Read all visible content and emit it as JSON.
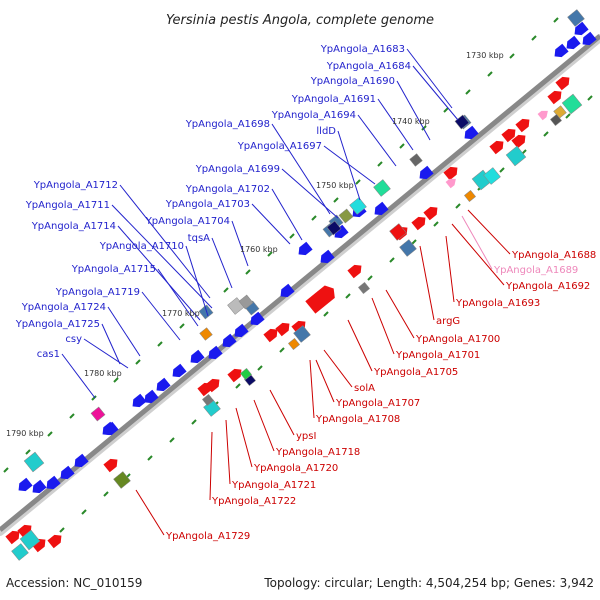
{
  "title": "Yersinia pestis Angola, complete genome",
  "footer": {
    "accession": "Accession: NC_010159",
    "summary": "Topology: circular; Length: 4,504,254 bp; Genes: 3,942"
  },
  "colors": {
    "minus_strand_label": "#2222cc",
    "plus_strand_label": "#cc0000",
    "pseudo_label": "#ee88bb",
    "backbone": "#888888"
  },
  "kbp_marks": [
    {
      "label": "1730 kbp"
    },
    {
      "label": "1740 kbp"
    },
    {
      "label": "1750 kbp"
    },
    {
      "label": "1760 kbp"
    },
    {
      "label": "1770 kbp"
    },
    {
      "label": "1780 kbp"
    },
    {
      "label": "1790 kbp"
    }
  ],
  "left_labels": [
    {
      "text": "YpAngola_A1683"
    },
    {
      "text": "YpAngola_A1684"
    },
    {
      "text": "YpAngola_A1690"
    },
    {
      "text": "YpAngola_A1691"
    },
    {
      "text": "YpAngola_A1694"
    },
    {
      "text": "YpAngola_A1698"
    },
    {
      "text": "lldD"
    },
    {
      "text": "YpAngola_A1697"
    },
    {
      "text": "YpAngola_A1699"
    },
    {
      "text": "YpAngola_A1712"
    },
    {
      "text": "YpAngola_A1702"
    },
    {
      "text": "YpAngola_A1711"
    },
    {
      "text": "YpAngola_A1703"
    },
    {
      "text": "YpAngola_A1714"
    },
    {
      "text": "YpAngola_A1704"
    },
    {
      "text": "tqsA"
    },
    {
      "text": "YpAngola_A1710"
    },
    {
      "text": "YpAngola_A1715"
    },
    {
      "text": "YpAngola_A1719"
    },
    {
      "text": "YpAngola_A1724"
    },
    {
      "text": "YpAngola_A1725"
    },
    {
      "text": "csy"
    },
    {
      "text": "cas1"
    }
  ],
  "right_labels": [
    {
      "text": "YpAngola_A1688"
    },
    {
      "text": "YpAngola_A1689"
    },
    {
      "text": "YpAngola_A1692"
    },
    {
      "text": "YpAngola_A1693"
    },
    {
      "text": "argG"
    },
    {
      "text": "YpAngola_A1700"
    },
    {
      "text": "YpAngola_A1701"
    },
    {
      "text": "YpAngola_A1705"
    },
    {
      "text": "solA"
    },
    {
      "text": "YpAngola_A1707"
    },
    {
      "text": "YpAngola_A1708"
    },
    {
      "text": "ypsI"
    },
    {
      "text": "YpAngola_A1718"
    },
    {
      "text": "YpAngola_A1720"
    },
    {
      "text": "YpAngola_A1721"
    },
    {
      "text": "YpAngola_A1722"
    },
    {
      "text": "YpAngola_A1729"
    }
  ]
}
